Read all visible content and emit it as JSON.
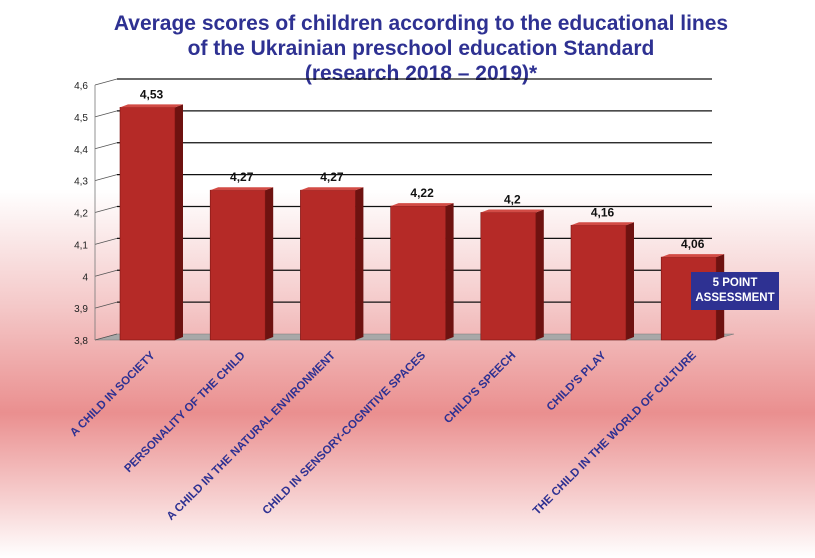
{
  "chart_data": {
    "type": "bar",
    "title": [
      "Average scores of children according to the educational lines",
      "of the Ukrainian preschool education Standard",
      "(research 2018 – 2019)*"
    ],
    "categories": [
      "A CHILD IN SOCIETY",
      "PERSONALITY OF THE CHILD",
      "A CHILD IN THE NATURAL ENVIRONMENT",
      "CHILD IN SENSORY-COGNITIVE SPACES",
      "CHILD'S SPEECH",
      "CHILD'S PLAY",
      "THE CHILD IN THE WORLD OF CULTURE"
    ],
    "values": [
      4.53,
      4.27,
      4.27,
      4.22,
      4.2,
      4.16,
      4.06
    ],
    "value_labels": [
      "4,53",
      "4,27",
      "4,27",
      "4,22",
      "4,2",
      "4,16",
      "4,06"
    ],
    "ylim": [
      3.8,
      4.6
    ],
    "yticks": [
      3.8,
      3.9,
      4,
      4.1,
      4.2,
      4.3,
      4.4,
      4.5,
      4.6
    ],
    "ytick_labels": [
      "3,8",
      "3,9",
      "4",
      "4,1",
      "4,2",
      "4,3",
      "4,4",
      "4,5",
      "4,6"
    ],
    "grid": true,
    "note": [
      "5 POINT",
      "ASSESSMENT"
    ],
    "colors": {
      "bar_front": "#b52a27",
      "bar_side": "#6e1210",
      "bar_top": "#d24b45",
      "title": "#2e3192",
      "floor": "#a8a8a8",
      "grid": "#111111"
    }
  }
}
